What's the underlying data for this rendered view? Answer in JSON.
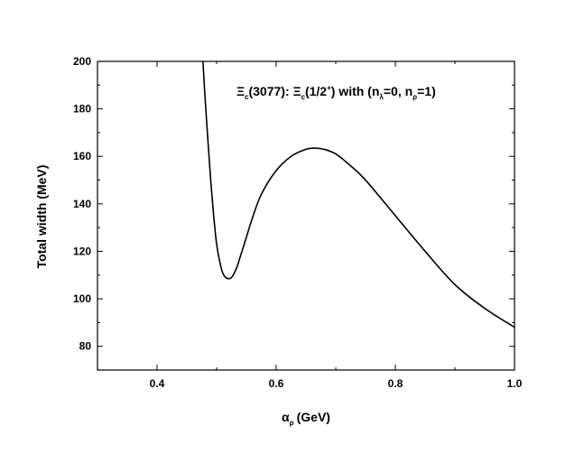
{
  "chart_data": {
    "type": "line",
    "xlabel": "α",
    "xlabel_sub": "ρ",
    "xlabel_unit": "(GeV)",
    "ylabel": "Total width (MeV)",
    "xlim": [
      0.3,
      1.0
    ],
    "ylim": [
      70,
      200
    ],
    "xticks": [
      0.4,
      0.6,
      0.8,
      1.0
    ],
    "xtick_labels": [
      "0.4",
      "0.6",
      "0.8",
      "1.0"
    ],
    "yticks": [
      80,
      100,
      120,
      140,
      160,
      180,
      200
    ],
    "ytick_labels": [
      "80",
      "100",
      "120",
      "140",
      "160",
      "180",
      "200"
    ],
    "grid": false,
    "annotation": {
      "part1": "Ξ",
      "part2": "c",
      "part3": "(3077): Ξ",
      "part4": "c",
      "part5": "(1/2",
      "part6": "+",
      "part7": ") with (n",
      "part8": "λ",
      "part9": "=0, n",
      "part10": "ρ",
      "part11": "=1)"
    },
    "series": [
      {
        "color": "#000000",
        "x": [
          0.477,
          0.48,
          0.485,
          0.49,
          0.495,
          0.5,
          0.505,
          0.51,
          0.515,
          0.52,
          0.525,
          0.53,
          0.535,
          0.54,
          0.55,
          0.56,
          0.575,
          0.6,
          0.625,
          0.65,
          0.665,
          0.68,
          0.7,
          0.725,
          0.75,
          0.8,
          0.85,
          0.9,
          0.95,
          1.0
        ],
        "y": [
          200,
          187,
          168,
          150,
          135,
          123,
          116,
          111,
          109,
          108.5,
          109,
          111,
          114,
          118,
          126,
          134,
          144,
          154,
          160,
          163,
          163.5,
          163,
          161,
          156,
          150,
          135,
          120,
          106,
          96,
          88
        ]
      }
    ]
  }
}
